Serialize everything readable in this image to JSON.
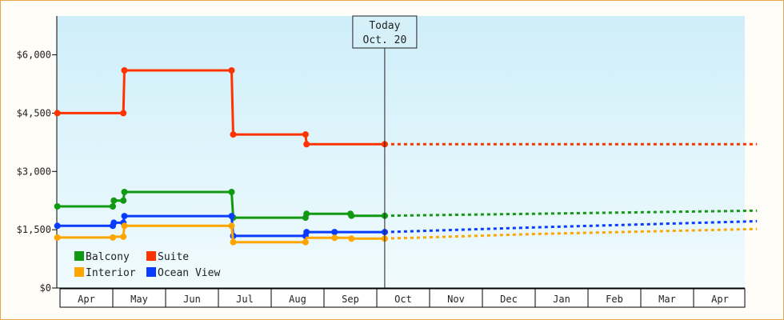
{
  "chart_data": {
    "type": "line",
    "title": "",
    "xlabel": "",
    "ylabel": "",
    "ylim": [
      0,
      7000
    ],
    "y_ticks": [
      {
        "value": 0,
        "label": "$0"
      },
      {
        "value": 1500,
        "label": "$1,500"
      },
      {
        "value": 3000,
        "label": "$3,000"
      },
      {
        "value": 4500,
        "label": "$4,500"
      },
      {
        "value": 6000,
        "label": "$6,000"
      }
    ],
    "x_month_labels": [
      "Apr",
      "May",
      "Jun",
      "Jul",
      "Aug",
      "Sep",
      "Oct",
      "Nov",
      "Dec",
      "Jan",
      "Feb",
      "Mar",
      "Apr"
    ],
    "today_marker": {
      "line1": "Today",
      "line2": "Oct. 20",
      "x": 6.15
    },
    "grid": false,
    "legend_position": "bottom-left",
    "series": [
      {
        "name": "Suite",
        "color": "#ff3300",
        "points": [
          [
            -0.05,
            4500
          ],
          [
            1.2,
            4500
          ],
          [
            1.22,
            5600
          ],
          [
            3.25,
            5600
          ],
          [
            3.28,
            3950
          ],
          [
            4.65,
            3950
          ],
          [
            4.67,
            3700
          ],
          [
            6.15,
            3700
          ]
        ],
        "markers": [
          [
            -0.05,
            4500
          ],
          [
            1.2,
            4500
          ],
          [
            1.22,
            5600
          ],
          [
            3.25,
            5600
          ],
          [
            3.28,
            3950
          ],
          [
            4.65,
            3950
          ],
          [
            4.67,
            3700
          ],
          [
            6.15,
            3700
          ]
        ],
        "projection": [
          [
            6.15,
            3700
          ],
          [
            13.2,
            3700
          ]
        ]
      },
      {
        "name": "Balcony",
        "color": "#119911",
        "points": [
          [
            -0.05,
            2100
          ],
          [
            1.0,
            2100
          ],
          [
            1.02,
            2250
          ],
          [
            1.2,
            2250
          ],
          [
            1.22,
            2470
          ],
          [
            3.25,
            2470
          ],
          [
            3.28,
            1810
          ],
          [
            4.65,
            1810
          ],
          [
            4.67,
            1910
          ],
          [
            5.5,
            1910
          ],
          [
            5.52,
            1860
          ],
          [
            6.15,
            1860
          ]
        ],
        "markers": [
          [
            -0.05,
            2100
          ],
          [
            1.0,
            2100
          ],
          [
            1.02,
            2250
          ],
          [
            1.2,
            2250
          ],
          [
            1.22,
            2470
          ],
          [
            3.25,
            2470
          ],
          [
            3.28,
            1810
          ],
          [
            4.65,
            1810
          ],
          [
            4.67,
            1910
          ],
          [
            5.5,
            1910
          ],
          [
            5.52,
            1860
          ],
          [
            6.15,
            1860
          ]
        ],
        "projection": [
          [
            6.15,
            1860
          ],
          [
            9.0,
            1910
          ],
          [
            13.2,
            1990
          ]
        ]
      },
      {
        "name": "Ocean View",
        "color": "#0a3cff",
        "points": [
          [
            -0.05,
            1600
          ],
          [
            1.0,
            1600
          ],
          [
            1.02,
            1680
          ],
          [
            1.2,
            1680
          ],
          [
            1.22,
            1850
          ],
          [
            3.25,
            1850
          ],
          [
            3.28,
            1340
          ],
          [
            4.65,
            1340
          ],
          [
            4.67,
            1440
          ],
          [
            6.15,
            1440
          ]
        ],
        "markers": [
          [
            -0.05,
            1600
          ],
          [
            1.0,
            1600
          ],
          [
            1.02,
            1680
          ],
          [
            1.2,
            1680
          ],
          [
            1.22,
            1850
          ],
          [
            3.25,
            1850
          ],
          [
            3.28,
            1340
          ],
          [
            4.65,
            1340
          ],
          [
            4.67,
            1440
          ],
          [
            5.2,
            1440
          ],
          [
            6.15,
            1440
          ]
        ],
        "projection": [
          [
            6.15,
            1440
          ],
          [
            9.0,
            1560
          ],
          [
            13.2,
            1720
          ]
        ]
      },
      {
        "name": "Interior",
        "color": "#ffa500",
        "points": [
          [
            -0.05,
            1300
          ],
          [
            1.0,
            1300
          ],
          [
            1.02,
            1320
          ],
          [
            1.2,
            1320
          ],
          [
            1.22,
            1600
          ],
          [
            3.25,
            1600
          ],
          [
            3.28,
            1180
          ],
          [
            4.65,
            1180
          ],
          [
            4.67,
            1290
          ],
          [
            5.5,
            1290
          ],
          [
            5.52,
            1270
          ],
          [
            6.15,
            1270
          ]
        ],
        "markers": [
          [
            -0.05,
            1300
          ],
          [
            1.0,
            1300
          ],
          [
            1.2,
            1320
          ],
          [
            1.22,
            1600
          ],
          [
            3.25,
            1600
          ],
          [
            3.28,
            1180
          ],
          [
            4.65,
            1180
          ],
          [
            5.2,
            1290
          ],
          [
            5.52,
            1270
          ],
          [
            6.15,
            1270
          ]
        ],
        "projection": [
          [
            6.15,
            1270
          ],
          [
            9.0,
            1390
          ],
          [
            13.2,
            1520
          ]
        ]
      }
    ],
    "legend": [
      {
        "name": "Balcony",
        "color": "#119911"
      },
      {
        "name": "Suite",
        "color": "#ff3300"
      },
      {
        "name": "Interior",
        "color": "#ffa500"
      },
      {
        "name": "Ocean View",
        "color": "#0a3cff"
      }
    ],
    "colors": {
      "plot_top": "#cfeef9",
      "plot_bottom": "#f0fbfe",
      "frame_border": "#e6a64f"
    }
  }
}
